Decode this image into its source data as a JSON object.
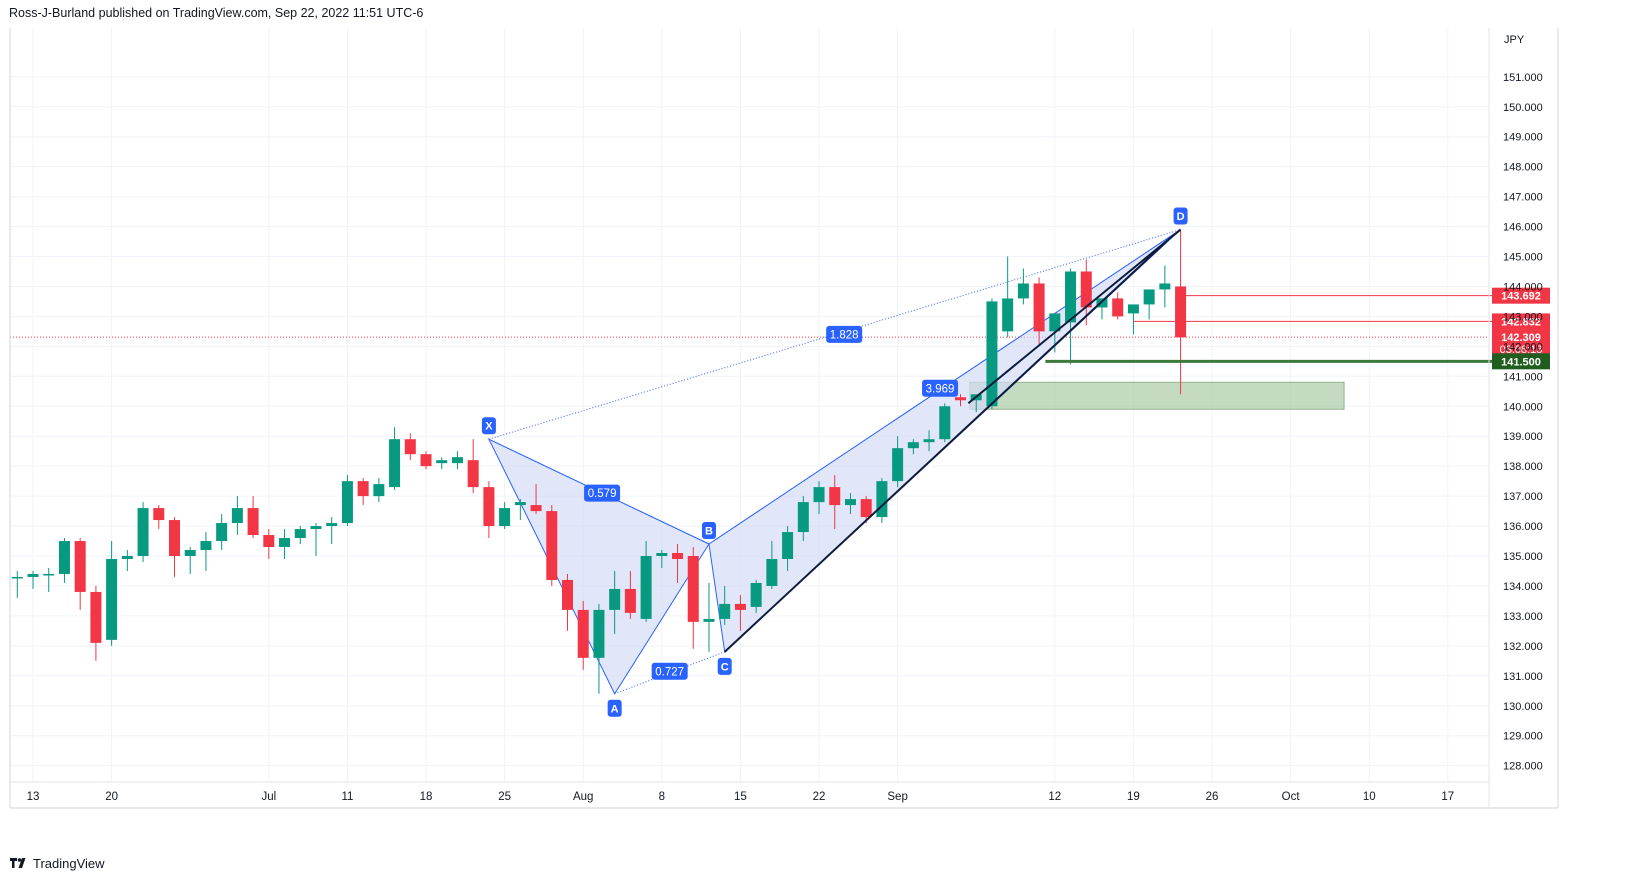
{
  "header": {
    "text": "Ross-J-Burland published on TradingView.com, Sep 22, 2022 11:51 UTC-6"
  },
  "footer": {
    "brand": "TradingView"
  },
  "chart_data": {
    "type": "candlestick",
    "currency": "JPY",
    "ylim": [
      127.5,
      152.2
    ],
    "y_ticks": [
      128,
      129,
      130,
      131,
      132,
      133,
      134,
      135,
      136,
      137,
      138,
      139,
      140,
      141,
      142,
      143,
      144,
      145,
      146,
      147,
      148,
      149,
      150,
      151
    ],
    "x_ticks": [
      {
        "label": "13",
        "i": 1
      },
      {
        "label": "20",
        "i": 6
      },
      {
        "label": "Jul",
        "i": 16
      },
      {
        "label": "11",
        "i": 21
      },
      {
        "label": "18",
        "i": 26
      },
      {
        "label": "25",
        "i": 31
      },
      {
        "label": "Aug",
        "i": 36
      },
      {
        "label": "8",
        "i": 41
      },
      {
        "label": "15",
        "i": 46
      },
      {
        "label": "22",
        "i": 51
      },
      {
        "label": "Sep",
        "i": 56
      },
      {
        "label": "12",
        "i": 66
      },
      {
        "label": "19",
        "i": 71
      },
      {
        "label": "26",
        "i": 76
      },
      {
        "label": "Oct",
        "i": 81
      },
      {
        "label": "10",
        "i": 86
      },
      {
        "label": "17",
        "i": 91
      }
    ],
    "candles": [
      [
        134.3,
        134.5,
        133.6,
        134.3
      ],
      [
        134.3,
        134.5,
        133.9,
        134.4
      ],
      [
        134.4,
        134.6,
        133.8,
        134.4
      ],
      [
        134.4,
        135.6,
        134.1,
        135.5
      ],
      [
        135.5,
        135.6,
        133.2,
        133.8
      ],
      [
        133.8,
        134.0,
        131.5,
        132.1
      ],
      [
        132.2,
        135.5,
        132.0,
        134.9
      ],
      [
        134.9,
        135.2,
        134.5,
        135.0
      ],
      [
        135.0,
        136.8,
        134.8,
        136.6
      ],
      [
        136.6,
        136.7,
        135.9,
        136.2
      ],
      [
        136.2,
        136.3,
        134.3,
        135.0
      ],
      [
        135.0,
        135.3,
        134.4,
        135.2
      ],
      [
        135.2,
        135.8,
        134.5,
        135.5
      ],
      [
        135.5,
        136.4,
        135.2,
        136.1
      ],
      [
        136.1,
        137.0,
        135.7,
        136.6
      ],
      [
        136.6,
        137.0,
        135.6,
        135.7
      ],
      [
        135.7,
        135.9,
        134.9,
        135.3
      ],
      [
        135.3,
        135.9,
        134.9,
        135.6
      ],
      [
        135.6,
        136.0,
        135.4,
        135.9
      ],
      [
        135.9,
        136.1,
        135.0,
        136.0
      ],
      [
        136.0,
        136.3,
        135.4,
        136.1
      ],
      [
        136.1,
        137.7,
        136.0,
        137.5
      ],
      [
        137.5,
        137.6,
        136.7,
        137.0
      ],
      [
        137.0,
        137.6,
        136.8,
        137.4
      ],
      [
        137.3,
        139.3,
        137.2,
        138.9
      ],
      [
        138.9,
        139.1,
        138.2,
        138.4
      ],
      [
        138.4,
        138.5,
        137.9,
        138.0
      ],
      [
        138.1,
        138.3,
        137.9,
        138.2
      ],
      [
        138.1,
        138.5,
        137.9,
        138.3
      ],
      [
        138.2,
        138.9,
        137.1,
        137.3
      ],
      [
        137.3,
        137.5,
        135.6,
        136.0
      ],
      [
        136.0,
        136.8,
        135.9,
        136.6
      ],
      [
        136.7,
        136.9,
        136.2,
        136.8
      ],
      [
        136.7,
        137.4,
        136.4,
        136.5
      ],
      [
        136.5,
        136.7,
        134.0,
        134.2
      ],
      [
        134.2,
        134.4,
        132.5,
        133.2
      ],
      [
        133.2,
        133.5,
        131.2,
        131.6
      ],
      [
        131.6,
        133.4,
        130.4,
        133.2
      ],
      [
        133.2,
        134.5,
        132.4,
        133.9
      ],
      [
        133.9,
        134.5,
        132.9,
        133.1
      ],
      [
        132.9,
        135.5,
        132.8,
        135.0
      ],
      [
        135.0,
        135.2,
        134.6,
        135.1
      ],
      [
        135.1,
        135.4,
        134.1,
        134.9
      ],
      [
        135.0,
        135.3,
        131.9,
        132.8
      ],
      [
        132.8,
        134.1,
        131.8,
        132.9
      ],
      [
        132.9,
        134.0,
        132.7,
        133.4
      ],
      [
        133.4,
        133.7,
        132.5,
        133.2
      ],
      [
        133.3,
        134.2,
        133.1,
        134.1
      ],
      [
        134.0,
        135.5,
        133.9,
        134.9
      ],
      [
        134.9,
        136.0,
        134.5,
        135.8
      ],
      [
        135.8,
        137.0,
        135.5,
        136.8
      ],
      [
        136.8,
        137.5,
        136.4,
        137.3
      ],
      [
        137.3,
        137.7,
        135.9,
        136.7
      ],
      [
        136.7,
        137.1,
        136.4,
        136.9
      ],
      [
        136.9,
        137.0,
        136.1,
        136.3
      ],
      [
        136.3,
        137.6,
        136.1,
        137.5
      ],
      [
        137.5,
        139.0,
        137.3,
        138.6
      ],
      [
        138.6,
        138.9,
        138.4,
        138.8
      ],
      [
        138.8,
        139.2,
        138.5,
        138.9
      ],
      [
        138.9,
        140.1,
        138.8,
        140.0
      ],
      [
        140.3,
        140.4,
        140.0,
        140.2
      ],
      [
        140.2,
        140.4,
        139.8,
        140.4
      ],
      [
        140.0,
        143.6,
        139.9,
        143.5
      ],
      [
        142.5,
        145.0,
        142.3,
        143.6
      ],
      [
        143.6,
        144.6,
        143.4,
        144.1
      ],
      [
        144.1,
        144.3,
        142.0,
        142.5
      ],
      [
        142.5,
        143.1,
        141.8,
        143.1
      ],
      [
        142.8,
        144.6,
        141.4,
        144.5
      ],
      [
        144.5,
        144.9,
        142.7,
        143.3
      ],
      [
        143.3,
        143.6,
        142.9,
        143.6
      ],
      [
        143.6,
        143.8,
        142.9,
        143.0
      ],
      [
        143.1,
        143.4,
        142.4,
        143.4
      ],
      [
        143.4,
        143.8,
        142.9,
        143.9
      ],
      [
        143.9,
        144.7,
        143.3,
        144.1
      ],
      [
        144.0,
        145.9,
        140.4,
        142.3
      ]
    ],
    "price_labels": [
      {
        "text": "143.692",
        "price": 143.692,
        "color": "#f23645"
      },
      {
        "text": "142.832",
        "price": 142.832,
        "color": "#f23645"
      },
      {
        "text": "142.309",
        "price": 142.309,
        "color": "#f23645",
        "extra": "03:08:13"
      },
      {
        "text": "141.500",
        "price": 141.5,
        "color": "#1f5e1f"
      }
    ],
    "pattern_points": [
      {
        "label": "X",
        "i": 30,
        "price": 138.9
      },
      {
        "label": "A",
        "i": 38,
        "price": 130.4
      },
      {
        "label": "B",
        "i": 44,
        "price": 135.4
      },
      {
        "label": "C",
        "i": 45,
        "price": 131.8
      },
      {
        "label": "D",
        "i": 74,
        "price": 145.9
      }
    ],
    "pattern_ratios": [
      {
        "label": "0.579",
        "i": 37.2,
        "price": 137.1
      },
      {
        "label": "0.727",
        "i": 41.5,
        "price": 131.15
      },
      {
        "label": "3.969",
        "i": 58.7,
        "price": 140.6
      },
      {
        "label": "1.828",
        "i": 52.6,
        "price": 142.4
      }
    ],
    "trendlines": [
      {
        "i1": 45,
        "p1": 131.8,
        "i2": 73.1,
        "p2": 145.5
      },
      {
        "i1": 60.5,
        "p1": 140.1,
        "i2": 74,
        "p2": 145.9
      }
    ],
    "support_zone": {
      "p_top": 140.8,
      "p_bottom": 139.9,
      "i_start": 60.6,
      "i_end": 84.4
    },
    "support_line": {
      "price": 141.5,
      "i_start": 65.4,
      "i_end": 94.3
    },
    "level_lines": [
      {
        "price": 143.692,
        "i_start": 74,
        "i_end": 94.3,
        "color": "#f23645"
      },
      {
        "price": 142.832,
        "i_start": 71,
        "i_end": 94.3,
        "color": "#f23645"
      }
    ],
    "last_price": 142.309,
    "colors": {
      "up": "#089981",
      "down": "#f23645",
      "pattern_fill": "#d4dcf7",
      "pattern_line": "#2962ff",
      "badge": "#2962ff",
      "zone": "#a5c8a0"
    }
  }
}
